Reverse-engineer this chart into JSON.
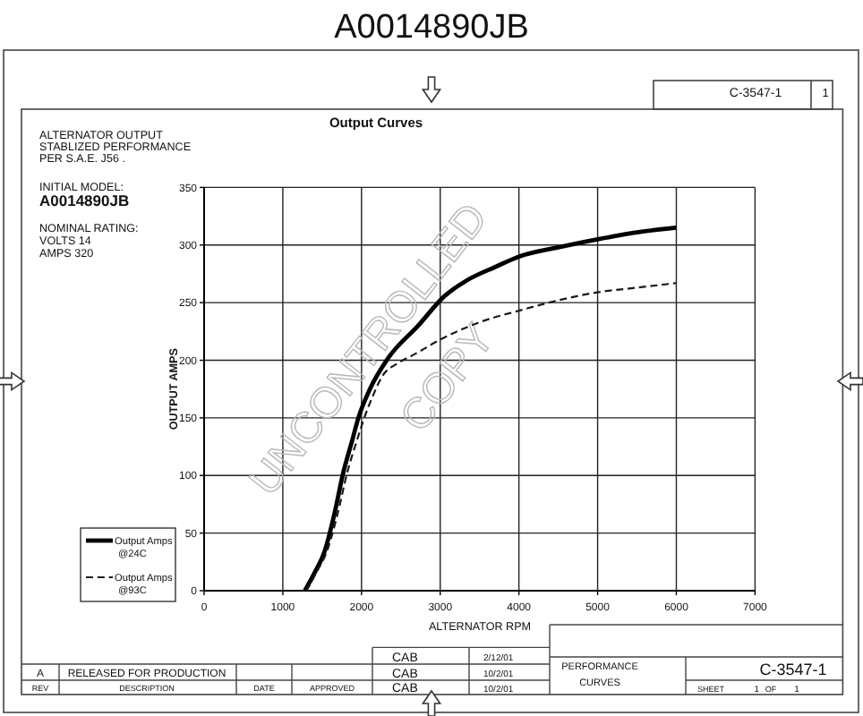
{
  "chart_data": {
    "type": "line",
    "title": "Output Curves",
    "xlabel": "ALTERNATOR RPM",
    "ylabel": "OUTPUT AMPS",
    "xlim": [
      0,
      7000
    ],
    "xticks": [
      0,
      1000,
      2000,
      3000,
      4000,
      5000,
      6000,
      7000
    ],
    "ylim": [
      0,
      350
    ],
    "yticks": [
      0,
      50,
      100,
      150,
      200,
      250,
      300,
      350
    ],
    "grid": true,
    "legend": "bottom left",
    "series": [
      {
        "name": "Output Amps @24C",
        "color": "#000000",
        "line_style": "solid",
        "x": [
          1280,
          1400,
          1540,
          1650,
          1770,
          1880,
          1960,
          2100,
          2340,
          2720,
          3060,
          3330,
          3700,
          4000,
          4500,
          5000,
          5500,
          6000
        ],
        "values": [
          0,
          15,
          36,
          65,
          103,
          130,
          150,
          174,
          202,
          230,
          256,
          269,
          281,
          290,
          298,
          305,
          311,
          315
        ]
      },
      {
        "name": "Output Amps @93C",
        "color": "#1a1a1a",
        "line_style": "dashed",
        "x": [
          1300,
          1420,
          1570,
          1690,
          1820,
          1940,
          2035,
          2150,
          2262,
          2450,
          2642,
          3060,
          3500,
          4000,
          4500,
          5000,
          5500,
          6000
        ],
        "values": [
          0,
          15,
          36,
          65,
          103,
          130,
          150,
          170,
          186,
          197,
          204,
          220,
          233,
          243,
          252,
          259,
          263,
          267
        ]
      }
    ],
    "annotations": [
      "A0014890JB",
      "ALTERNATOR OUTPUT",
      "STABLIZED PERFORMANCE",
      "PER S.A.E. J56 .",
      "INITIAL MODEL:",
      "A0014890JB",
      "NOMINAL RATING:",
      "VOLTS 14",
      "AMPS 320",
      "C-3547-1",
      "1",
      "A",
      "RELEASED FOR PRODUCTION",
      "REV",
      "DESCRIPTION",
      "DATE",
      "APPROVED",
      "CAB",
      "CAB",
      "CAB",
      "2/12/01",
      "10/2/01",
      "10/2/01",
      "PERFORMANCE",
      "CURVES",
      "C-3547-1",
      "SHEET",
      "1",
      "OF",
      "1",
      "UNCONTROLLED",
      "COPY"
    ]
  }
}
